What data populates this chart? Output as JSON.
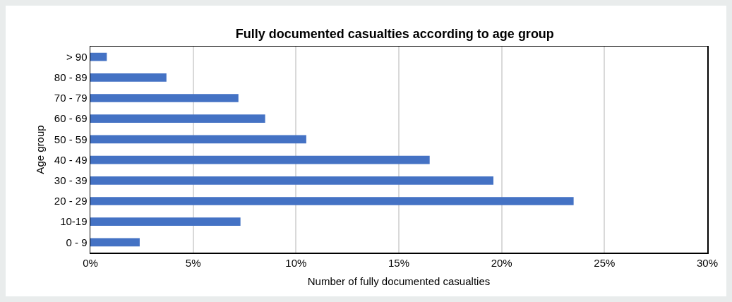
{
  "chart_data": {
    "type": "bar",
    "orientation": "horizontal",
    "title": "Fully documented casualties according to age group",
    "xlabel": "Number of fully documented casualties",
    "ylabel": "Age group",
    "categories": [
      "> 90",
      "80 - 89",
      "70 - 79",
      "60 - 69",
      "50 - 59",
      "40 - 49",
      "30 - 39",
      "20 - 29",
      "10-19",
      "0 - 9"
    ],
    "values": [
      0.8,
      3.7,
      7.2,
      8.5,
      10.5,
      16.5,
      19.6,
      23.5,
      7.3,
      2.4
    ],
    "color": "#4472c4",
    "xlim": [
      0,
      30
    ],
    "xticks": [
      {
        "value": 0,
        "label": "0%"
      },
      {
        "value": 5,
        "label": "5%"
      },
      {
        "value": 10,
        "label": "10%"
      },
      {
        "value": 15,
        "label": "15%"
      },
      {
        "value": 20,
        "label": "20%"
      },
      {
        "value": 25,
        "label": "25%"
      },
      {
        "value": 30,
        "label": "30%"
      }
    ],
    "grid": "x"
  }
}
